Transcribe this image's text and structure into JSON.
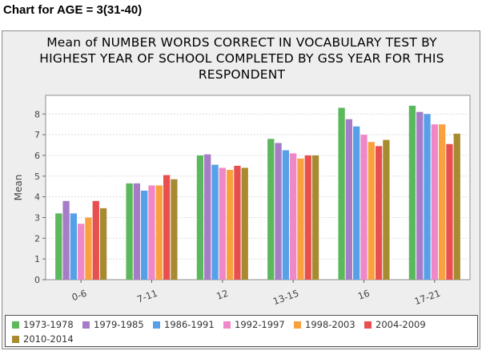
{
  "heading": "Chart for AGE = 3(31-40)",
  "chart_data": {
    "type": "bar",
    "title_lines": [
      "Mean of NUMBER WORDS CORRECT IN VOCABULARY TEST BY",
      "HIGHEST YEAR OF SCHOOL COMPLETED BY GSS YEAR FOR THIS",
      "RESPONDENT"
    ],
    "ylabel": "Mean",
    "xlabel": "",
    "ylim": [
      0,
      8.9
    ],
    "yticks": [
      0,
      1,
      2,
      3,
      4,
      5,
      6,
      7,
      8
    ],
    "grid": true,
    "legend_position": "bottom",
    "categories": [
      "0-6",
      "7-11",
      "12",
      "13-15",
      "16",
      "17-21"
    ],
    "series": [
      {
        "name": "1973-1978",
        "color": "#5cb85c",
        "values": [
          3.2,
          4.65,
          6.0,
          6.8,
          8.3,
          8.4
        ]
      },
      {
        "name": "1979-1985",
        "color": "#a67cc7",
        "values": [
          3.8,
          4.65,
          6.05,
          6.6,
          7.75,
          8.1
        ]
      },
      {
        "name": "1986-1991",
        "color": "#56a0e8",
        "values": [
          3.2,
          4.3,
          5.55,
          6.25,
          7.4,
          8.0
        ]
      },
      {
        "name": "1992-1997",
        "color": "#f088c8",
        "values": [
          2.7,
          4.55,
          5.4,
          6.1,
          7.0,
          7.5
        ]
      },
      {
        "name": "1998-2003",
        "color": "#f9a03f",
        "values": [
          3.0,
          4.55,
          5.3,
          5.85,
          6.65,
          7.5
        ]
      },
      {
        "name": "2004-2009",
        "color": "#e8504f",
        "values": [
          3.8,
          5.05,
          5.5,
          6.0,
          6.45,
          6.55
        ]
      },
      {
        "name": "2010-2014",
        "color": "#a88a30",
        "values": [
          3.45,
          4.85,
          5.4,
          6.0,
          6.75,
          7.05
        ]
      }
    ]
  }
}
